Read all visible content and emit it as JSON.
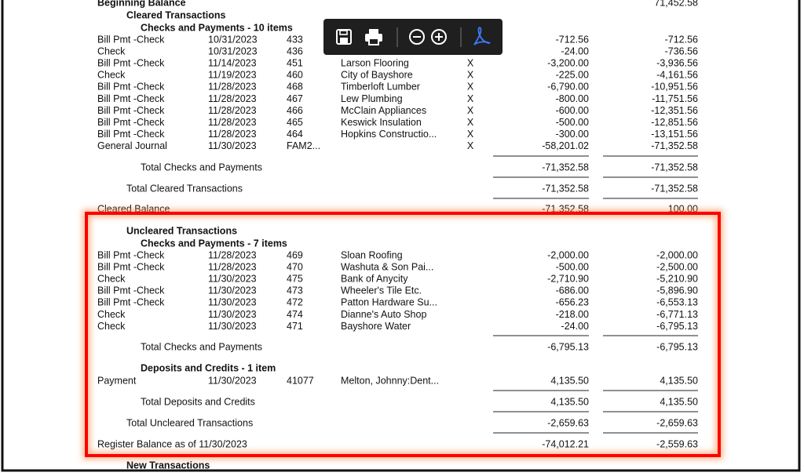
{
  "beginning_balance": {
    "label": "Beginning Balance",
    "balance": "71,452.58"
  },
  "cleared": {
    "title": "Cleared Transactions",
    "checks": {
      "title": "Checks and Payments - 10 items",
      "rows": [
        {
          "type": "Bill Pmt -Check",
          "date": "10/31/2023",
          "num": "433",
          "amount": "-712.56",
          "balance": "-712.56"
        },
        {
          "type": "Check",
          "date": "10/31/2023",
          "num": "436",
          "amount": "-24.00",
          "balance": "-736.56"
        },
        {
          "type": "Bill Pmt -Check",
          "date": "11/14/2023",
          "num": "451",
          "name": "Larson Flooring",
          "clr": "X",
          "amount": "-3,200.00",
          "balance": "-3,936.56"
        },
        {
          "type": "Check",
          "date": "11/19/2023",
          "num": "460",
          "name": "City of Bayshore",
          "clr": "X",
          "amount": "-225.00",
          "balance": "-4,161.56"
        },
        {
          "type": "Bill Pmt -Check",
          "date": "11/28/2023",
          "num": "468",
          "name": "Timberloft Lumber",
          "clr": "X",
          "amount": "-6,790.00",
          "balance": "-10,951.56"
        },
        {
          "type": "Bill Pmt -Check",
          "date": "11/28/2023",
          "num": "467",
          "name": "Lew Plumbing",
          "clr": "X",
          "amount": "-800.00",
          "balance": "-11,751.56"
        },
        {
          "type": "Bill Pmt -Check",
          "date": "11/28/2023",
          "num": "466",
          "name": "McClain Appliances",
          "clr": "X",
          "amount": "-600.00",
          "balance": "-12,351.56"
        },
        {
          "type": "Bill Pmt -Check",
          "date": "11/28/2023",
          "num": "465",
          "name": "Keswick Insulation",
          "clr": "X",
          "amount": "-500.00",
          "balance": "-12,851.56"
        },
        {
          "type": "Bill Pmt -Check",
          "date": "11/28/2023",
          "num": "464",
          "name": "Hopkins Constructio...",
          "clr": "X",
          "amount": "-300.00",
          "balance": "-13,151.56"
        },
        {
          "type": "General Journal",
          "date": "11/30/2023",
          "num": "FAM2...",
          "clr": "X",
          "amount": "-58,201.02",
          "balance": "-71,352.58"
        }
      ],
      "total": {
        "label": "Total Checks and Payments",
        "amount": "-71,352.58",
        "balance": "-71,352.58"
      }
    },
    "total": {
      "label": "Total Cleared Transactions",
      "amount": "-71,352.58",
      "balance": "-71,352.58"
    }
  },
  "cleared_balance": {
    "label": "Cleared Balance",
    "amount": "-71,352.58",
    "balance": "100.00"
  },
  "uncleared": {
    "title": "Uncleared Transactions",
    "checks": {
      "title": "Checks and Payments - 7 items",
      "rows": [
        {
          "type": "Bill Pmt -Check",
          "date": "11/28/2023",
          "num": "469",
          "name": "Sloan Roofing",
          "amount": "-2,000.00",
          "balance": "-2,000.00"
        },
        {
          "type": "Bill Pmt -Check",
          "date": "11/28/2023",
          "num": "470",
          "name": "Washuta & Son Pai...",
          "amount": "-500.00",
          "balance": "-2,500.00"
        },
        {
          "type": "Check",
          "date": "11/30/2023",
          "num": "475",
          "name": "Bank of Anycity",
          "amount": "-2,710.90",
          "balance": "-5,210.90"
        },
        {
          "type": "Bill Pmt -Check",
          "date": "11/30/2023",
          "num": "473",
          "name": "Wheeler's Tile Etc.",
          "amount": "-686.00",
          "balance": "-5,896.90"
        },
        {
          "type": "Bill Pmt -Check",
          "date": "11/30/2023",
          "num": "472",
          "name": "Patton Hardware Su...",
          "amount": "-656.23",
          "balance": "-6,553.13"
        },
        {
          "type": "Check",
          "date": "11/30/2023",
          "num": "474",
          "name": "Dianne's Auto Shop",
          "amount": "-218.00",
          "balance": "-6,771.13"
        },
        {
          "type": "Check",
          "date": "11/30/2023",
          "num": "471",
          "name": "Bayshore Water",
          "amount": "-24.00",
          "balance": "-6,795.13"
        }
      ],
      "total": {
        "label": "Total Checks and Payments",
        "amount": "-6,795.13",
        "balance": "-6,795.13"
      }
    },
    "deposits": {
      "title": "Deposits and Credits - 1 item",
      "rows": [
        {
          "type": "Payment",
          "date": "11/30/2023",
          "num": "41077",
          "name": "Melton, Johnny:Dent...",
          "amount": "4,135.50",
          "balance": "4,135.50"
        }
      ],
      "total": {
        "label": "Total Deposits and Credits",
        "amount": "4,135.50",
        "balance": "4,135.50"
      }
    },
    "total": {
      "label": "Total Uncleared Transactions",
      "amount": "-2,659.63",
      "balance": "-2,659.63"
    }
  },
  "register_balance": {
    "label": "Register Balance as of 11/30/2023",
    "amount": "-74,012.21",
    "balance": "-2,559.63"
  },
  "new_transactions": {
    "title": "New Transactions"
  }
}
